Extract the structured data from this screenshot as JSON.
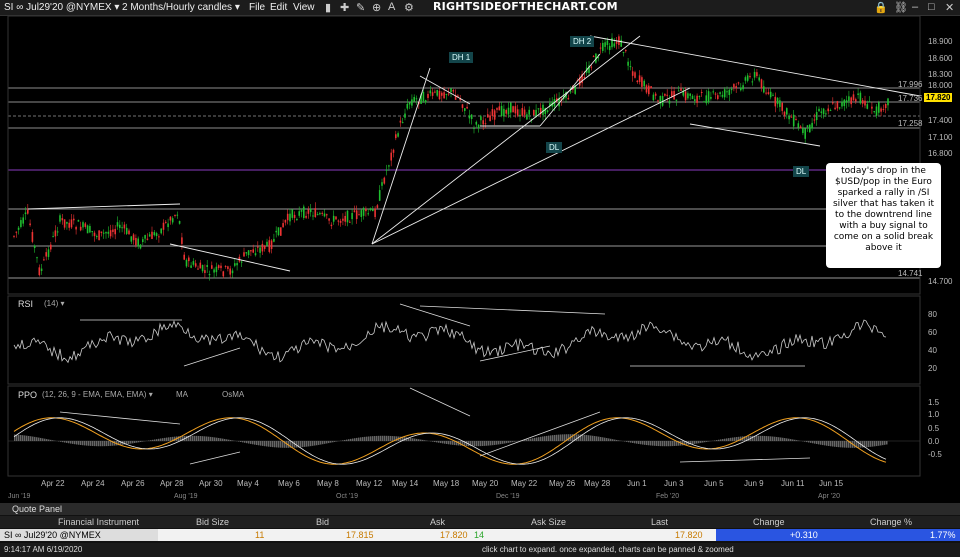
{
  "titlebar": {
    "symbol": "SI ∞ Jul29'20 @NYMEX ▾",
    "interval": "2 Months/Hourly candles ▾",
    "menus": [
      "File",
      "Edit",
      "View"
    ],
    "brand": "RIGHTSIDEOFTHECHART.COM"
  },
  "chart": {
    "labels": {
      "dh1": "DH 1",
      "dh2": "DH 2",
      "dl1": "DL",
      "dl2": "DL"
    },
    "price_axis": [
      "18.900",
      "18.600",
      "18.300",
      "18.000",
      "17.700",
      "17.400",
      "17.100",
      "16.800",
      "16.500",
      "14.700"
    ],
    "price_tags": {
      "high": "17.996",
      "mid": "17.736",
      "last": "17.820",
      "low": "17.258",
      "bottom": "14.741"
    },
    "x_axis": [
      "Apr 22",
      "Apr 24",
      "Apr 26",
      "Apr 28",
      "Apr 30",
      "May 4",
      "May 6",
      "May 8",
      "May 12",
      "May 14",
      "May 18",
      "May 20",
      "May 22",
      "May 26",
      "May 28",
      "Jun 1",
      "Jun 3",
      "Jun 5",
      "Jun 9",
      "Jun 11",
      "Jun 15",
      "Jun 17"
    ],
    "overview_axis": [
      "Jun '19",
      "Aug '19",
      "Oct '19",
      "Dec '19",
      "Feb '20",
      "Apr '20"
    ],
    "annotation": "today's drop in the $USD/pop in the Euro sparked a rally in /SI silver that has taken it to the downtrend line with a buy signal to come on a solid break above it"
  },
  "rsi": {
    "label": "RSI",
    "params": "(14) ▾",
    "axis": [
      "80",
      "60",
      "40",
      "20"
    ]
  },
  "ppo": {
    "label": "PPO",
    "params": "(12, 26, 9 - EMA, EMA, EMA) ▾",
    "ma_label": "MA",
    "osma_label": "OsMA",
    "axis": [
      "1.5",
      "1.0",
      "0.5",
      "0.0",
      "-0.5"
    ]
  },
  "quote_panel": {
    "title": "Quote Panel",
    "headers": [
      "Financial Instrument",
      "Bid Size",
      "Bid",
      "Ask",
      "Ask Size",
      "Last",
      "Change",
      "Change %"
    ],
    "row": {
      "instrument": "SI ∞ Jul29'20 @NYMEX",
      "bid_size": "11",
      "bid": "17.815",
      "ask": "17.820",
      "ask_size": "14",
      "last": "17.820",
      "change": "+0.310",
      "change_pct": "1.77%"
    },
    "colors": {
      "up": "#2a7de1",
      "bid": "#c77a00",
      "ask": "#2aa52a"
    }
  },
  "status": {
    "time": "9:14:17 AM 6/19/2020",
    "hint": "click chart to expand. once expanded, charts can be panned & zoomed"
  }
}
